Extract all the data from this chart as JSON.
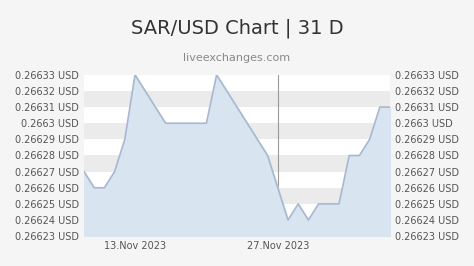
{
  "title": "SAR/USD Chart | 31 D",
  "subtitle": "liveexchanges.com",
  "title_fontsize": 14,
  "subtitle_fontsize": 8,
  "ytick_labels": [
    "0.26623 USD",
    "0.26624 USD",
    "0.26625 USD",
    "0.26626 USD",
    "0.26627 USD",
    "0.26628 USD",
    "0.26629 USD",
    "0.2663 USD",
    "0.26631 USD",
    "0.26632 USD",
    "0.26633 USD"
  ],
  "ytick_values": [
    0.26623,
    0.26624,
    0.26625,
    0.26626,
    0.26627,
    0.26628,
    0.26629,
    0.2663,
    0.26631,
    0.26632,
    0.26633
  ],
  "ylim": [
    0.26623,
    0.26633
  ],
  "xtick_labels": [
    "13.Nov 2023",
    "27.Nov 2023"
  ],
  "xtick_positions": [
    5,
    19
  ],
  "x_data": [
    0,
    1,
    2,
    3,
    4,
    5,
    6,
    7,
    8,
    9,
    10,
    11,
    12,
    13,
    14,
    15,
    16,
    17,
    18,
    19,
    20,
    21,
    22,
    23,
    24,
    25,
    26,
    27,
    28,
    29,
    30
  ],
  "y_data": [
    0.26627,
    0.26626,
    0.26626,
    0.26627,
    0.26629,
    0.26633,
    0.26632,
    0.26631,
    0.2663,
    0.2663,
    0.2663,
    0.2663,
    0.2663,
    0.26633,
    0.26632,
    0.26631,
    0.2663,
    0.26629,
    0.26628,
    0.26626,
    0.26624,
    0.26625,
    0.26624,
    0.26625,
    0.26625,
    0.26625,
    0.26628,
    0.26628,
    0.26629,
    0.26631,
    0.26631
  ],
  "line_color": "#a8b8d0",
  "fill_color": "#d8e4f0",
  "bg_band_colors": [
    "#ebebeb",
    "#ffffff"
  ],
  "vline_positions": [
    5,
    19
  ],
  "vline_color": "#999999",
  "figure_bg": "#f5f5f5",
  "axes_bg": "#f5f5f5",
  "grid_color": "#cccccc",
  "tick_fontsize": 7
}
